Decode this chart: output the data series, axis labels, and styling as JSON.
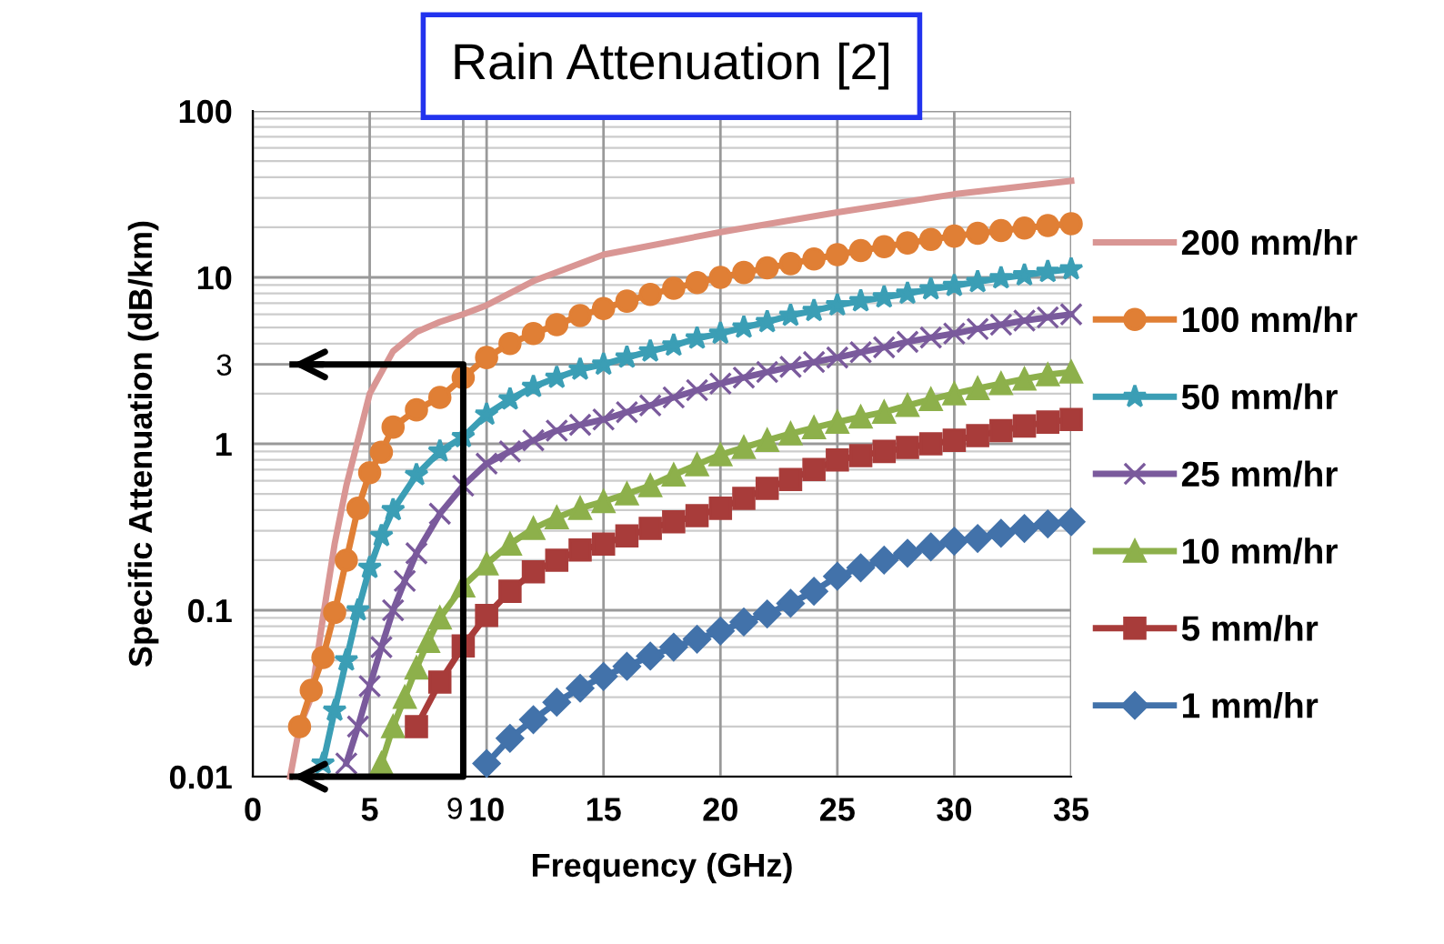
{
  "chart_data": {
    "type": "line",
    "title": "Rain Attenuation [2]",
    "xlabel": "Frequency (GHz)",
    "ylabel": "Specific Attenuation (dB/km)",
    "log": "y",
    "xlim": [
      0,
      35
    ],
    "xticks": [
      0,
      5,
      {
        "value": 9,
        "label": "9"
      },
      10,
      15,
      20,
      25,
      30,
      35
    ],
    "ylim": [
      0.01,
      100
    ],
    "yticks": [
      0.01,
      0.1,
      1,
      {
        "value": 3,
        "label": "3"
      },
      10,
      100
    ],
    "grid": true,
    "legend": "right",
    "line_style": "solid",
    "series": [
      {
        "name": "200 mm/hr",
        "color": "#d99694",
        "marker": "none",
        "x": [
          1.6,
          2,
          2.5,
          3,
          3.5,
          4,
          5,
          6,
          7,
          8,
          9,
          10,
          12,
          15,
          20,
          25,
          30,
          35
        ],
        "values": [
          0.01,
          0.02,
          0.03,
          0.09,
          0.25,
          0.56,
          2.0,
          3.6,
          4.7,
          5.4,
          6,
          6.8,
          9.5,
          13.7,
          18.7,
          24.6,
          31.6,
          38
        ]
      },
      {
        "name": "100 mm/hr",
        "color": "#e07f35",
        "marker": "circle",
        "x": [
          2,
          2.5,
          3,
          3.5,
          4,
          4.5,
          5,
          5.5,
          6,
          7,
          8,
          9,
          10,
          11,
          12,
          13,
          14,
          15,
          16,
          17,
          18,
          19,
          20,
          21,
          22,
          23,
          24,
          25,
          26,
          27,
          28,
          29,
          30,
          31,
          32,
          33,
          34,
          35
        ],
        "values": [
          0.02,
          0.033,
          0.052,
          0.097,
          0.2,
          0.41,
          0.67,
          0.89,
          1.26,
          1.6,
          1.9,
          2.5,
          3.3,
          4.0,
          4.6,
          5.2,
          5.9,
          6.5,
          7.2,
          7.9,
          8.6,
          9.3,
          10,
          10.7,
          11.4,
          12.1,
          12.9,
          13.7,
          14.5,
          15.3,
          16.1,
          16.9,
          17.7,
          18.4,
          19.1,
          19.8,
          20.5,
          21
        ]
      },
      {
        "name": "50 mm/hr",
        "color": "#3b9eb5",
        "marker": "star",
        "x": [
          3,
          3.5,
          4,
          4.5,
          5,
          5.5,
          6,
          7,
          8,
          9,
          10,
          11,
          12,
          13,
          14,
          15,
          16,
          17,
          18,
          19,
          20,
          21,
          22,
          23,
          24,
          25,
          26,
          27,
          28,
          29,
          30,
          31,
          32,
          33,
          34,
          35
        ],
        "values": [
          0.012,
          0.025,
          0.05,
          0.1,
          0.18,
          0.28,
          0.4,
          0.65,
          0.9,
          1.1,
          1.5,
          1.85,
          2.2,
          2.5,
          2.8,
          3.0,
          3.3,
          3.6,
          3.9,
          4.3,
          4.6,
          5.0,
          5.4,
          5.9,
          6.3,
          6.8,
          7.2,
          7.6,
          8.0,
          8.5,
          8.9,
          9.4,
          9.9,
          10.3,
          10.8,
          11.2
        ]
      },
      {
        "name": "25 mm/hr",
        "color": "#7a5a9c",
        "marker": "cross",
        "x": [
          4,
          4.5,
          5,
          5.5,
          6,
          6.5,
          7,
          8,
          9,
          10,
          11,
          12,
          13,
          14,
          15,
          16,
          17,
          18,
          19,
          20,
          21,
          22,
          23,
          24,
          25,
          26,
          27,
          28,
          29,
          30,
          31,
          32,
          33,
          34,
          35
        ],
        "values": [
          0.012,
          0.02,
          0.035,
          0.06,
          0.1,
          0.15,
          0.22,
          0.38,
          0.56,
          0.76,
          0.9,
          1.05,
          1.2,
          1.3,
          1.4,
          1.55,
          1.7,
          1.9,
          2.1,
          2.3,
          2.5,
          2.7,
          2.9,
          3.1,
          3.3,
          3.55,
          3.8,
          4.1,
          4.35,
          4.6,
          4.9,
          5.2,
          5.5,
          5.75,
          6.0
        ]
      },
      {
        "name": "10 mm/hr",
        "color": "#8db04b",
        "marker": "triangle",
        "x": [
          5.5,
          6,
          6.5,
          7,
          7.5,
          8,
          9,
          10,
          11,
          12,
          13,
          14,
          15,
          16,
          17,
          18,
          19,
          20,
          21,
          22,
          23,
          24,
          25,
          26,
          27,
          28,
          29,
          30,
          31,
          32,
          33,
          34,
          35
        ],
        "values": [
          0.012,
          0.02,
          0.03,
          0.045,
          0.065,
          0.09,
          0.14,
          0.19,
          0.25,
          0.31,
          0.36,
          0.41,
          0.45,
          0.5,
          0.56,
          0.65,
          0.75,
          0.86,
          0.95,
          1.05,
          1.15,
          1.25,
          1.35,
          1.45,
          1.55,
          1.7,
          1.85,
          2.0,
          2.15,
          2.3,
          2.45,
          2.6,
          2.7
        ]
      },
      {
        "name": "5 mm/hr",
        "color": "#a83c3a",
        "marker": "square",
        "x": [
          7,
          8,
          9,
          10,
          11,
          12,
          13,
          14,
          15,
          16,
          17,
          18,
          19,
          20,
          21,
          22,
          23,
          24,
          25,
          26,
          27,
          28,
          29,
          30,
          31,
          32,
          33,
          34,
          35
        ],
        "values": [
          0.02,
          0.037,
          0.061,
          0.093,
          0.13,
          0.17,
          0.2,
          0.23,
          0.25,
          0.28,
          0.31,
          0.34,
          0.37,
          0.41,
          0.47,
          0.54,
          0.61,
          0.7,
          0.8,
          0.85,
          0.9,
          0.95,
          1.0,
          1.05,
          1.12,
          1.2,
          1.28,
          1.35,
          1.4
        ]
      },
      {
        "name": "1 mm/hr",
        "color": "#4272aa",
        "marker": "diamond",
        "x": [
          10,
          11,
          12,
          13,
          14,
          15,
          16,
          17,
          18,
          19,
          20,
          21,
          22,
          23,
          24,
          25,
          26,
          27,
          28,
          29,
          30,
          31,
          32,
          33,
          34,
          35
        ],
        "values": [
          0.012,
          0.017,
          0.022,
          0.028,
          0.034,
          0.04,
          0.046,
          0.053,
          0.06,
          0.067,
          0.075,
          0.085,
          0.095,
          0.11,
          0.13,
          0.16,
          0.18,
          0.2,
          0.22,
          0.24,
          0.26,
          0.27,
          0.29,
          0.31,
          0.33,
          0.34
        ]
      },
      {
        "color": "#000000",
        "marker": "none",
        "x": [
          1.7,
          9,
          9,
          1.7
        ],
        "values": [
          3,
          3,
          0.01,
          0.01
        ]
      }
    ]
  }
}
